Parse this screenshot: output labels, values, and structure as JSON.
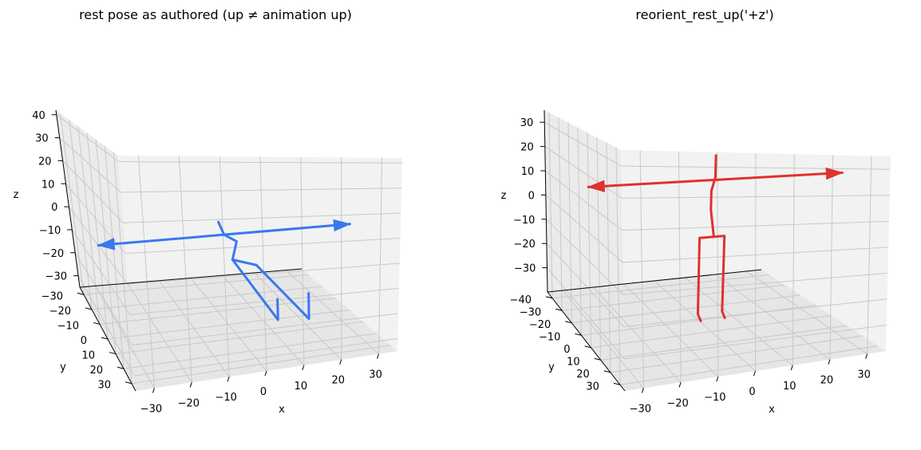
{
  "chart_data": [
    {
      "type": "line",
      "projection": "3d",
      "title": "rest pose as authored (up ≠ animation up)",
      "xlabel": "x",
      "ylabel": "y",
      "zlabel": "z",
      "color": "#3878f0",
      "grid": true,
      "xticks": [
        -30,
        -20,
        -10,
        0,
        10,
        20,
        30
      ],
      "yticks": [
        30,
        20,
        10,
        0,
        -10,
        -20,
        -30
      ],
      "zticks": [
        40,
        30,
        20,
        10,
        0,
        -10,
        -20,
        -30
      ],
      "xlim": [
        -35,
        35
      ],
      "ylim": [
        -35,
        35
      ],
      "zlim": [
        -35,
        42
      ],
      "series": [
        {
          "points": [
            [
              -35,
              0,
              0
            ],
            [
              35,
              0,
              0
            ]
          ],
          "arrows": true
        },
        {
          "points": [
            [
              -2,
              2,
              6
            ],
            [
              0,
              0,
              0
            ],
            [
              4,
              -2,
              -4
            ],
            [
              2,
              0,
              -10
            ],
            [
              8,
              2,
              -12
            ]
          ]
        },
        {
          "points": [
            [
              2,
              0,
              -10
            ],
            [
              11,
              10,
              -30
            ],
            [
              11,
              10,
              -22
            ]
          ]
        },
        {
          "points": [
            [
              8,
              2,
              -12
            ],
            [
              19,
              12,
              -30
            ],
            [
              19,
              12,
              -20
            ]
          ]
        }
      ]
    },
    {
      "type": "line",
      "projection": "3d",
      "title": "reorient_rest_up('+z')",
      "xlabel": "x",
      "ylabel": "y",
      "zlabel": "z",
      "color": "#e0312d",
      "grid": true,
      "xticks": [
        -30,
        -20,
        -10,
        0,
        10,
        20,
        30
      ],
      "yticks": [
        30,
        20,
        10,
        0,
        -10,
        -20,
        -30,
        -40
      ],
      "zticks": [
        30,
        20,
        10,
        0,
        -10,
        -20,
        -30
      ],
      "xlim": [
        -35,
        35
      ],
      "ylim": [
        -45,
        35
      ],
      "zlim": [
        -40,
        35
      ],
      "series": [
        {
          "points": [
            [
              -35,
              0,
              16
            ],
            [
              35,
              0,
              16
            ]
          ],
          "arrows": true
        },
        {
          "points": [
            [
              0,
              0,
              25
            ],
            [
              0,
              0,
              17
            ],
            [
              -1,
              0,
              12
            ],
            [
              -1,
              0,
              5
            ],
            [
              0,
              0,
              -5
            ]
          ]
        },
        {
          "points": [
            [
              0,
              0,
              -5
            ],
            [
              -4,
              0,
              -5
            ],
            [
              -4,
              0,
              -33
            ],
            [
              -2,
              -3,
              -37
            ]
          ]
        },
        {
          "points": [
            [
              0,
              0,
              -5
            ],
            [
              3,
              0,
              -5
            ],
            [
              3,
              0,
              -33
            ],
            [
              5,
              -3,
              -37
            ]
          ]
        }
      ]
    }
  ]
}
